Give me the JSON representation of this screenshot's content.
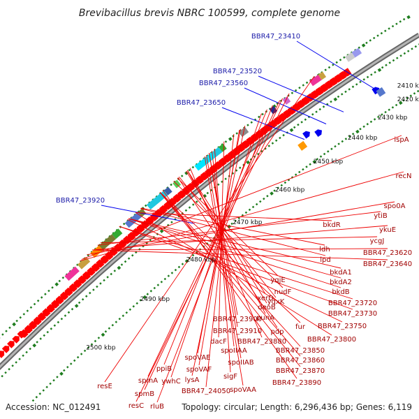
{
  "title": "Brevibacillus brevis NBRC 100599, complete genome",
  "accession": "Accession: NC_012491",
  "topology": "Topology: circular; Length: 6,296,436 bp; Genes: 6,119",
  "kbp_ticks": [
    "2410 kbp",
    "2420 kbp",
    "2430 kbp",
    "2440 kbp",
    "2450 kbp",
    "2460 kbp",
    "2470 kbp",
    "2480 kbp",
    "2490 kbp",
    "2500 kbp"
  ],
  "blue_labels": [
    "BBR47_23410",
    "BBR47_23520",
    "BBR47_23560",
    "BBR47_23650",
    "BBR47_23920"
  ],
  "red_labels": [
    "ispA",
    "recN",
    "spo0A",
    "ytiB",
    "ykuE",
    "ycgJ",
    "BBR47_23620",
    "BBR47_23640",
    "bkdR",
    "ldh",
    "lpd",
    "bkdA1",
    "bkdA2",
    "bkdB",
    "yqjE",
    "nudF",
    "yqxK",
    "xerD",
    "BBR47_23720",
    "BBR47_23730",
    "deoB",
    "punA",
    "fur",
    "BBR47_23750",
    "pdp",
    "BBR47_23800",
    "BBR47_23900",
    "BBR47_23910",
    "BBR47_23880",
    "BBR47_23850",
    "BBR47_23860",
    "BBR47_23870",
    "BBR47_23890",
    "dacF",
    "spoIIAA",
    "spoIIAB",
    "sigF",
    "spoVAA",
    "spoVAE",
    "spoVAF",
    "lysA",
    "BBR47_24050",
    "ppiB",
    "ywhC",
    "spmA",
    "spmB",
    "resE",
    "resC",
    "rluB"
  ],
  "colors": {
    "ring": "#888888",
    "gene_arrow": "#ff0000",
    "blue_gene": "#0000ee",
    "red_label": "#a00000",
    "blue_label": "#1a1aa8",
    "tick_green": "#1e7d1e"
  }
}
